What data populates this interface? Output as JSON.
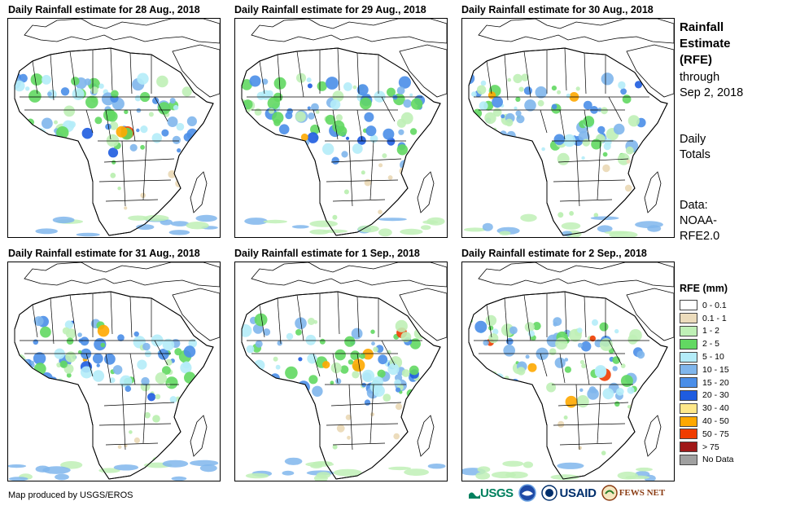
{
  "panels": [
    {
      "title": "Daily Rainfall estimate for 28 Aug., 2018"
    },
    {
      "title": "Daily Rainfall estimate for 29 Aug., 2018"
    },
    {
      "title": "Daily Rainfall estimate for 30 Aug., 2018"
    },
    {
      "title": "Daily Rainfall estimate for 31 Aug., 2018"
    },
    {
      "title": "Daily Rainfall estimate for 1 Sep., 2018"
    },
    {
      "title": "Daily Rainfall estimate for 2 Sep., 2018"
    }
  ],
  "side": {
    "title_line1": "Rainfall",
    "title_line2": "Estimate",
    "title_line3": "(RFE)",
    "through_line1": "through",
    "through_line2": "Sep 2, 2018",
    "totals_line1": "Daily",
    "totals_line2": "Totals",
    "data_line1": "Data:",
    "data_line2": "NOAA-",
    "data_line3": "RFE2.0"
  },
  "legend": {
    "title": "RFE (mm)",
    "items": [
      {
        "label": "0 - 0.1",
        "color": "#ffffff"
      },
      {
        "label": "0.1 - 1",
        "color": "#ecdcbc"
      },
      {
        "label": "1 - 2",
        "color": "#bff0b6"
      },
      {
        "label": "2 - 5",
        "color": "#62d862"
      },
      {
        "label": "5 - 10",
        "color": "#b4ecf8"
      },
      {
        "label": "10 - 15",
        "color": "#80b6ec"
      },
      {
        "label": "15 - 20",
        "color": "#4a8ee8"
      },
      {
        "label": "20 - 30",
        "color": "#1e5ce0"
      },
      {
        "label": "30 - 40",
        "color": "#ffe88a"
      },
      {
        "label": "40 - 50",
        "color": "#ffa800"
      },
      {
        "label": "50 - 75",
        "color": "#f03c00"
      },
      {
        "label": "> 75",
        "color": "#a01818"
      },
      {
        "label": "No Data",
        "color": "#a0a0a0"
      }
    ]
  },
  "footer": {
    "credit": "Map produced by USGS/EROS"
  },
  "logos": {
    "usgs": "USGS",
    "noaa": "NOAA",
    "usaid": "USAID",
    "fewsnet": "FEWS NET"
  }
}
